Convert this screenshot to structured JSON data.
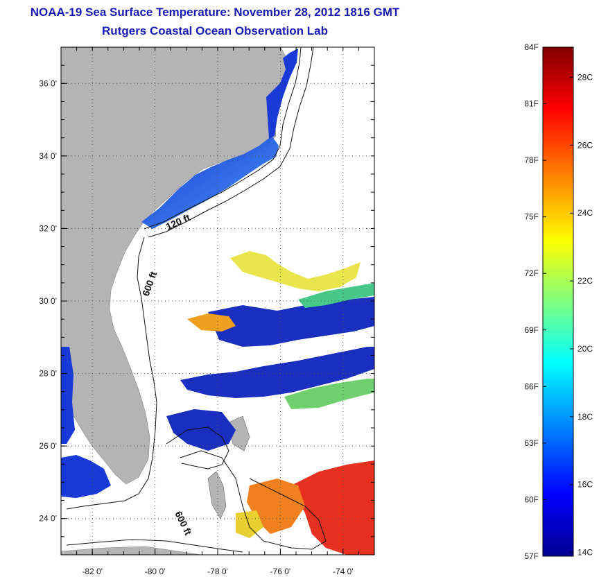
{
  "header": {
    "title": "NOAA-19 Sea Surface Temperature:  November 28, 2012 1816 GMT",
    "subtitle": "Rutgers Coastal Ocean Observation Lab"
  },
  "map": {
    "lon_range": [
      -83,
      -73
    ],
    "lat_range": [
      23,
      37
    ],
    "lat_ticks": [
      {
        "value": 36,
        "label": "36 0'"
      },
      {
        "value": 34,
        "label": "34 0'"
      },
      {
        "value": 32,
        "label": "32 0'"
      },
      {
        "value": 30,
        "label": "30 0'"
      },
      {
        "value": 28,
        "label": "28 0'"
      },
      {
        "value": 26,
        "label": "26 0'"
      },
      {
        "value": 24,
        "label": "24 0'"
      }
    ],
    "lon_ticks": [
      {
        "value": -82,
        "label": "-82 0'"
      },
      {
        "value": -80,
        "label": "-80 0'"
      },
      {
        "value": -78,
        "label": "-78 0'"
      },
      {
        "value": -76,
        "label": "-76 0'"
      },
      {
        "value": -74,
        "label": "-74 0'"
      }
    ],
    "grid": true,
    "contour_labels": [
      "120 ft",
      "600 ft",
      "600 ft"
    ],
    "land_color": "#b4b4b4"
  },
  "colorbar": {
    "min_F": 57,
    "max_F": 84,
    "left_labels": [
      "84F",
      "81F",
      "78F",
      "75F",
      "72F",
      "69F",
      "66F",
      "63F",
      "60F",
      "57F"
    ],
    "right_labels": [
      "28C",
      "26C",
      "24C",
      "22C",
      "20C",
      "18C",
      "16C",
      "14C"
    ]
  }
}
